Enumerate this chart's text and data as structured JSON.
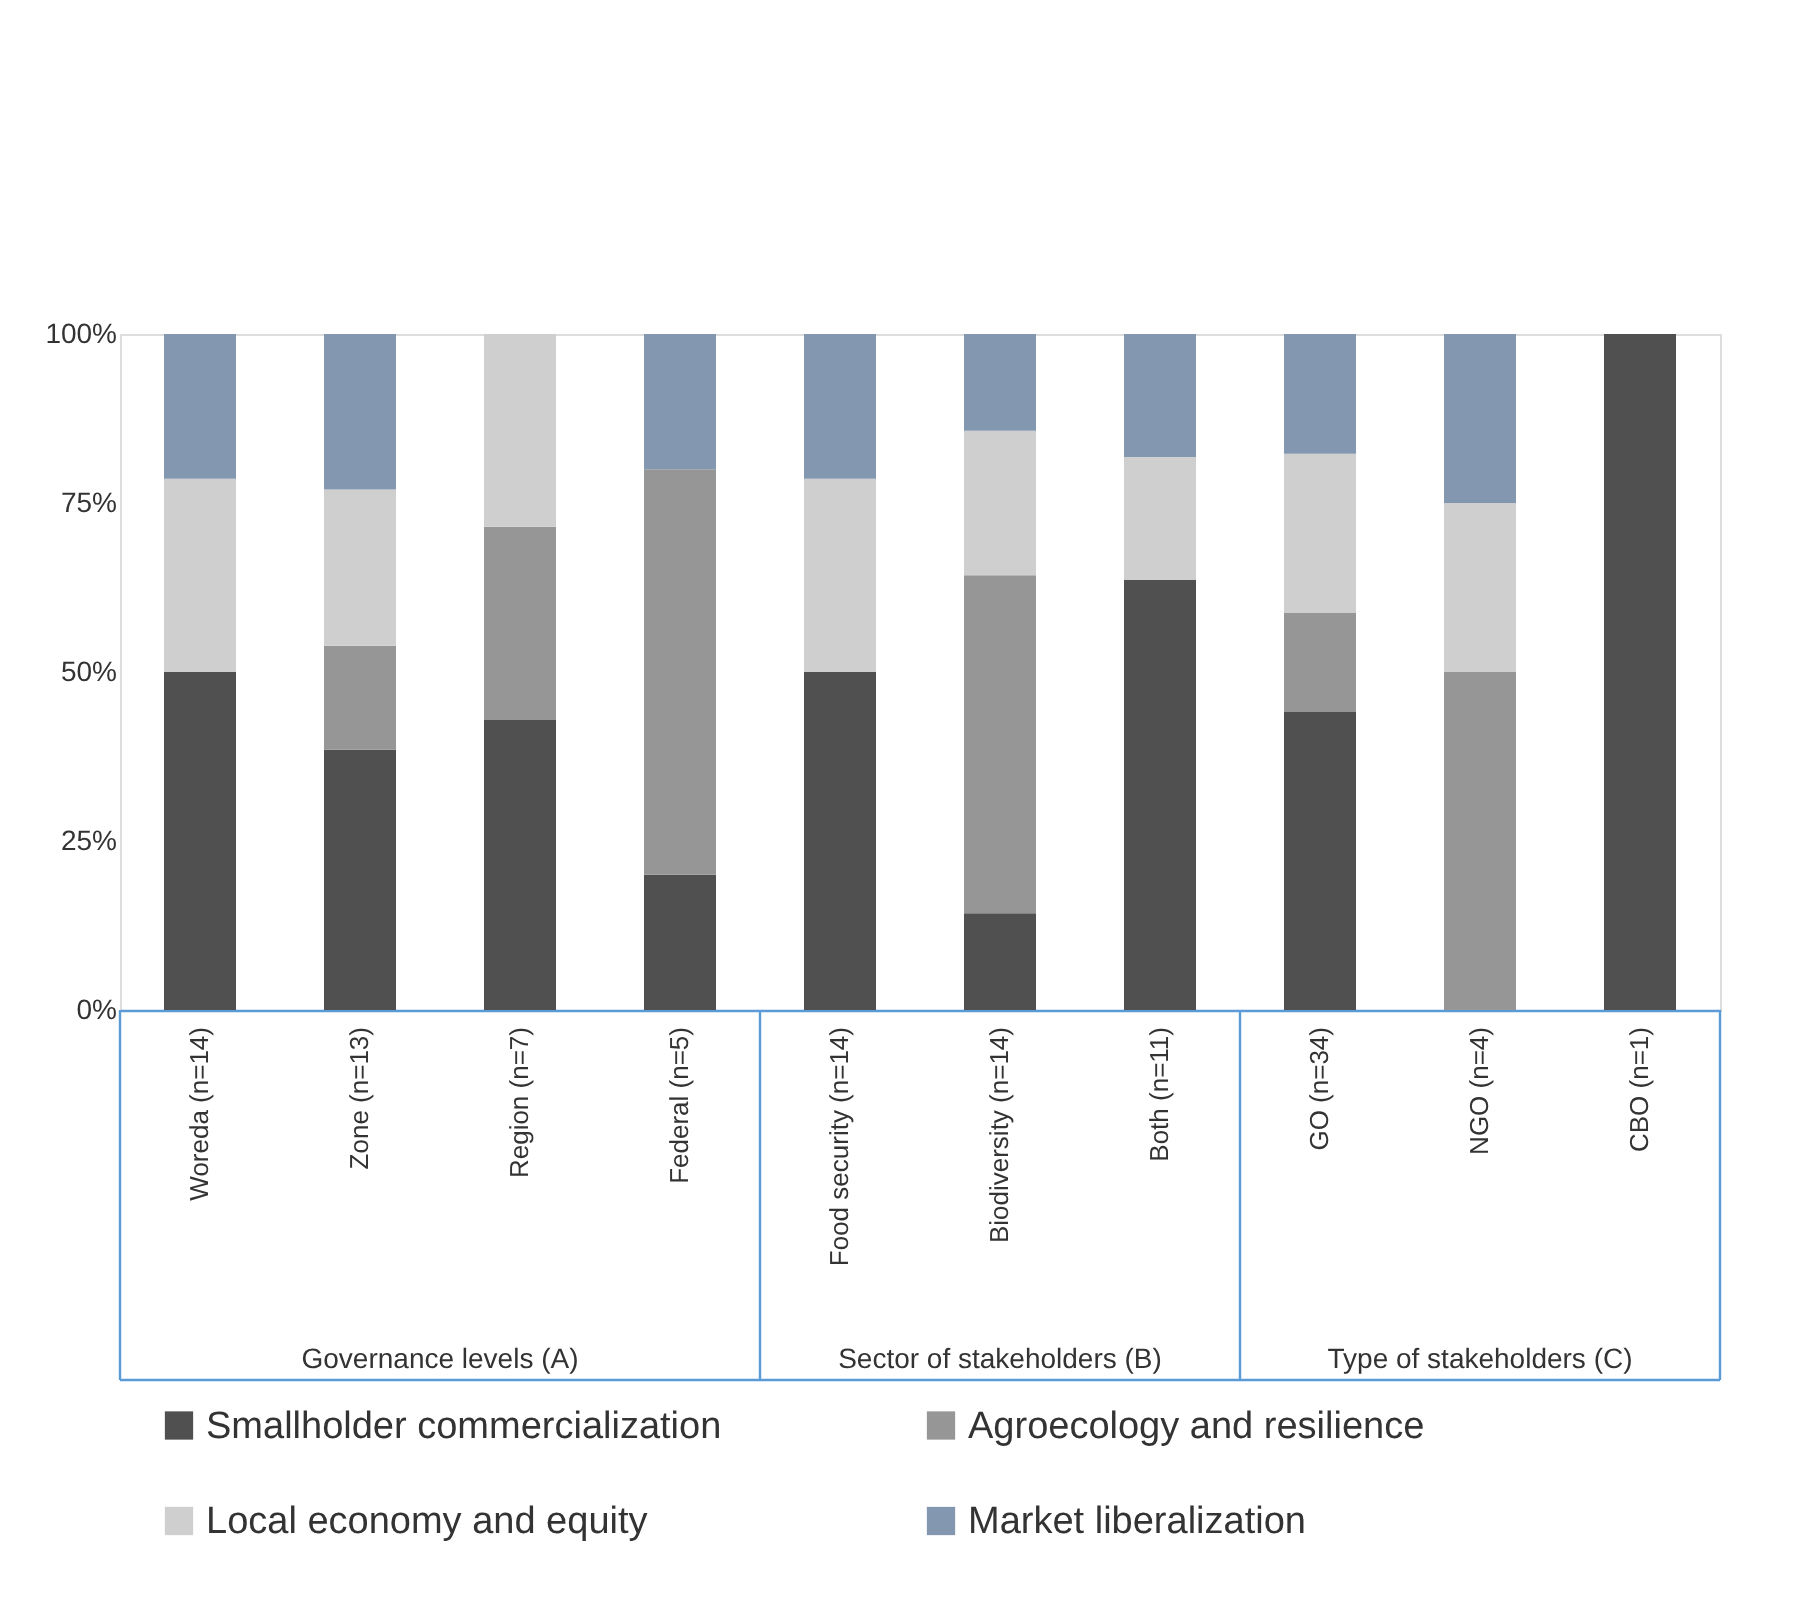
{
  "chart_data": {
    "type": "bar",
    "stacked": true,
    "categories": [
      "Woreda (n=14)",
      "Zone (n=13)",
      "Region (n=7)",
      "Federal (n=5)",
      "Food security (n=14)",
      "Biodiversity (n=14)",
      "Both (n=11)",
      "GO (n=34)",
      "NGO (n=4)",
      "CBO (n=1)"
    ],
    "series": [
      {
        "name": "Smallholder commercialization",
        "color": "#505050",
        "values": [
          50,
          38.5,
          42.9,
          20,
          50,
          14.3,
          63.6,
          44.1,
          0,
          100
        ]
      },
      {
        "name": "Agroecology and resilience",
        "color": "#969696",
        "values": [
          0,
          15.4,
          28.6,
          60,
          0,
          50,
          0,
          14.7,
          50,
          0
        ]
      },
      {
        "name": "Local economy and equity",
        "color": "#cfcfcf",
        "values": [
          28.6,
          23.1,
          28.5,
          0,
          28.6,
          21.4,
          18.2,
          23.5,
          25,
          0
        ]
      },
      {
        "name": "Market liberalization",
        "color": "#8497b0",
        "values": [
          21.4,
          23,
          0,
          20,
          21.4,
          14.3,
          18.2,
          17.7,
          25,
          0
        ]
      }
    ],
    "ylim": [
      0,
      100
    ],
    "yticks": [
      {
        "value": 0,
        "label": "0%"
      },
      {
        "value": 25,
        "label": "25%"
      },
      {
        "value": 50,
        "label": "50%"
      },
      {
        "value": 75,
        "label": "75%"
      },
      {
        "value": 100,
        "label": "100%"
      }
    ],
    "annotations": [
      "Governance levels (A)",
      "Sector of stakeholders (B)",
      "Type of stakeholders (C)"
    ],
    "grid": false,
    "legend": "bottom"
  }
}
